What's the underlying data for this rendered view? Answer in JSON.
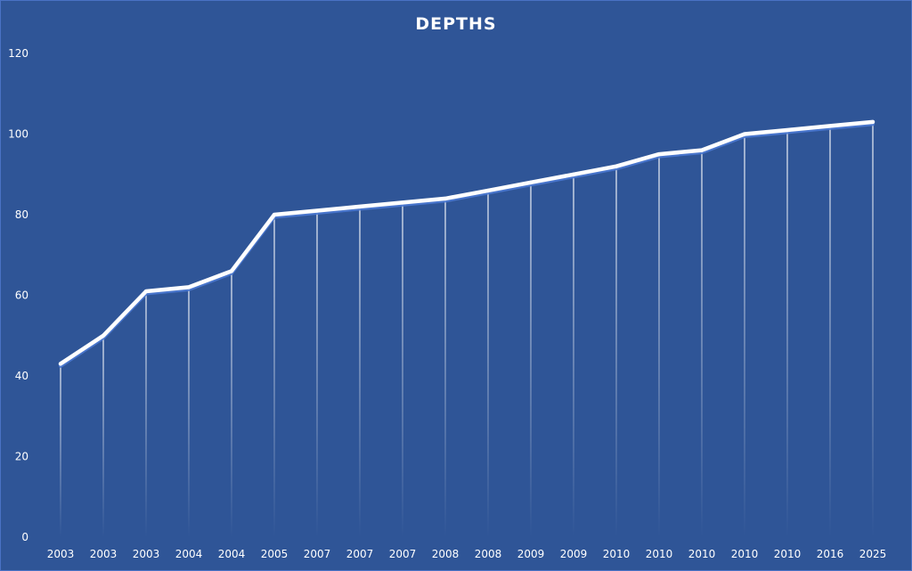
{
  "chart_data": {
    "type": "line",
    "title": "DEPTHS",
    "xlabel": "",
    "ylabel": "",
    "categories": [
      "2003",
      "2003",
      "2003",
      "2004",
      "2004",
      "2005",
      "2007",
      "2007",
      "2007",
      "2008",
      "2008",
      "2009",
      "2009",
      "2010",
      "2010",
      "2010",
      "2010",
      "2010",
      "2016",
      "2025"
    ],
    "series": [
      {
        "values": [
          43,
          50,
          61,
          62,
          66,
          80,
          81,
          82,
          83,
          84,
          86,
          88,
          90,
          92,
          95,
          96,
          100,
          101,
          102,
          103
        ]
      }
    ],
    "ylim": [
      0,
      120
    ],
    "yticks": [
      0,
      20,
      40,
      60,
      80,
      100,
      120
    ],
    "grid": false,
    "drop_lines": true,
    "legend": "none",
    "colors": {
      "background": "#2f5597",
      "line": "#ffffff",
      "text": "#ffffff"
    }
  }
}
